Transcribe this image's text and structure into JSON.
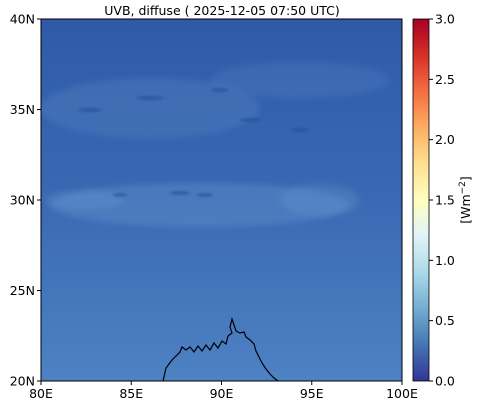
{
  "title": "UVB, diffuse ( 2025-12-05 07:50 UTC)",
  "map": {
    "lon_range": [
      80,
      100
    ],
    "lat_range": [
      20,
      40
    ],
    "x_ticks": [
      {
        "value": 80,
        "label": "80E"
      },
      {
        "value": 85,
        "label": "85E"
      },
      {
        "value": 90,
        "label": "90E"
      },
      {
        "value": 95,
        "label": "95E"
      },
      {
        "value": 100,
        "label": "100E"
      }
    ],
    "y_ticks": [
      {
        "value": 20,
        "label": "20N"
      },
      {
        "value": 25,
        "label": "25N"
      },
      {
        "value": 30,
        "label": "30N"
      },
      {
        "value": 35,
        "label": "35N"
      },
      {
        "value": 40,
        "label": "40N"
      }
    ],
    "field_colors": {
      "north": "#2f5aa8",
      "middle": "#3a69b3",
      "south": "#4d82c3",
      "cloud": "#6a9ad0",
      "dark_patch": "#24489a"
    },
    "coast_color": "#000000"
  },
  "colorbar": {
    "label": "[Wm$^{-2}$]",
    "label_parts": {
      "base": "[Wm",
      "exp": "−2",
      "close": "]"
    },
    "range": [
      0.0,
      3.0
    ],
    "colormap": "RdYlBu_r",
    "colors": [
      "#313695",
      "#4575b4",
      "#74add1",
      "#abd9e9",
      "#e0f3f8",
      "#ffffbf",
      "#fee090",
      "#fdae61",
      "#f46d43",
      "#d73027",
      "#a50026"
    ],
    "ticks": [
      {
        "value": 0.0,
        "label": "0.0"
      },
      {
        "value": 0.5,
        "label": "0.5"
      },
      {
        "value": 1.0,
        "label": "1.0"
      },
      {
        "value": 1.5,
        "label": "1.5"
      },
      {
        "value": 2.0,
        "label": "2.0"
      },
      {
        "value": 2.5,
        "label": "2.5"
      },
      {
        "value": 3.0,
        "label": "3.0"
      }
    ]
  }
}
